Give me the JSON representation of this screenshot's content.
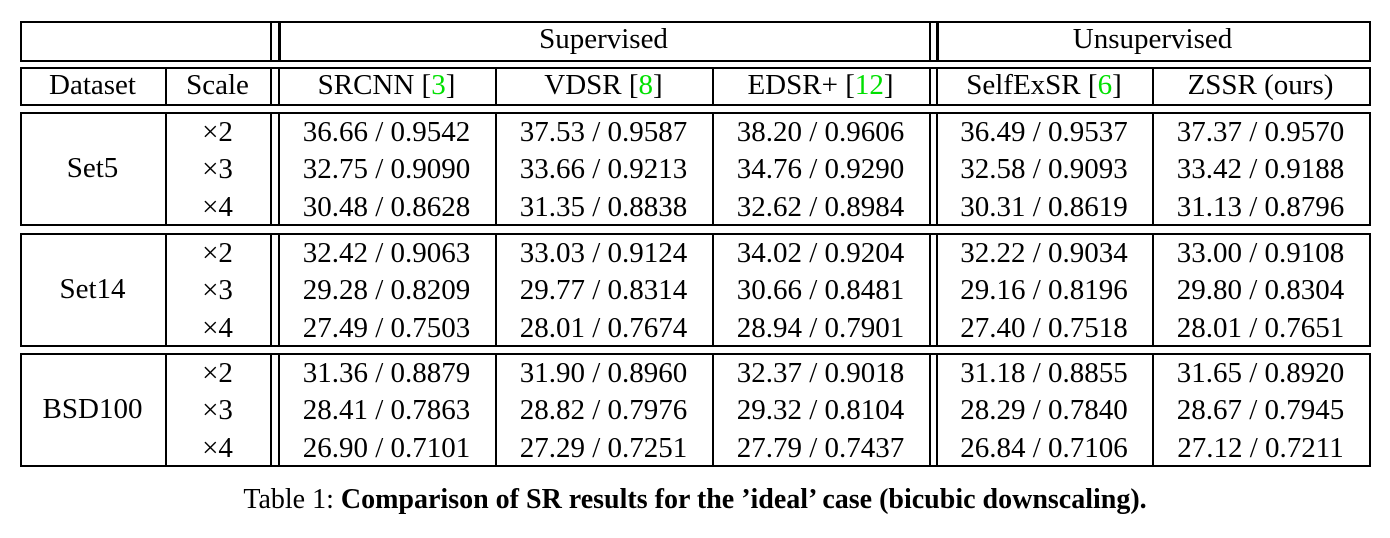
{
  "table": {
    "group_headers": {
      "supervised": "Supervised",
      "unsupervised": "Unsupervised"
    },
    "columns": {
      "dataset": "Dataset",
      "scale": "Scale",
      "methods": [
        {
          "name": "SRCNN",
          "ref": "3"
        },
        {
          "name": "VDSR",
          "ref": "8"
        },
        {
          "name": "EDSR+",
          "ref": "12"
        },
        {
          "name": "SelfExSR",
          "ref": "6"
        },
        {
          "name": "ZSSR (ours)",
          "ref": ""
        }
      ]
    },
    "blocks": [
      {
        "dataset": "Set5",
        "rows": [
          {
            "scale": "×2",
            "values": [
              "36.66 / 0.9542",
              "37.53 / 0.9587",
              "38.20 / 0.9606",
              "36.49 / 0.9537",
              "37.37 / 0.9570"
            ]
          },
          {
            "scale": "×3",
            "values": [
              "32.75 / 0.9090",
              "33.66 / 0.9213",
              "34.76 / 0.9290",
              "32.58 / 0.9093",
              "33.42 / 0.9188"
            ]
          },
          {
            "scale": "×4",
            "values": [
              "30.48 / 0.8628",
              "31.35 / 0.8838",
              "32.62 / 0.8984",
              "30.31 / 0.8619",
              "31.13 / 0.8796"
            ]
          }
        ]
      },
      {
        "dataset": "Set14",
        "rows": [
          {
            "scale": "×2",
            "values": [
              "32.42 / 0.9063",
              "33.03 / 0.9124",
              "34.02 / 0.9204",
              "32.22 / 0.9034",
              "33.00 / 0.9108"
            ]
          },
          {
            "scale": "×3",
            "values": [
              "29.28 / 0.8209",
              "29.77 / 0.8314",
              "30.66 / 0.8481",
              "29.16 / 0.8196",
              "29.80 / 0.8304"
            ]
          },
          {
            "scale": "×4",
            "values": [
              "27.49 / 0.7503",
              "28.01 / 0.7674",
              "28.94 / 0.7901",
              "27.40 / 0.7518",
              "28.01 / 0.7651"
            ]
          }
        ]
      },
      {
        "dataset": "BSD100",
        "rows": [
          {
            "scale": "×2",
            "values": [
              "31.36 / 0.8879",
              "31.90 / 0.8960",
              "32.37 / 0.9018",
              "31.18 / 0.8855",
              "31.65 / 0.8920"
            ]
          },
          {
            "scale": "×3",
            "values": [
              "28.41 / 0.7863",
              "28.82 / 0.7976",
              "29.32 / 0.8104",
              "28.29 / 0.7840",
              "28.67 / 0.7945"
            ]
          },
          {
            "scale": "×4",
            "values": [
              "26.90 / 0.7101",
              "27.29 / 0.7251",
              "27.79 / 0.7437",
              "26.84 / 0.7106",
              "27.12 / 0.7211"
            ]
          }
        ]
      }
    ]
  },
  "caption": {
    "label": "Table 1: ",
    "text": "Comparison of SR results for the ’ideal’ case (bicubic downscaling)."
  },
  "colors": {
    "reference_link": "#00e000",
    "text": "#000000"
  }
}
